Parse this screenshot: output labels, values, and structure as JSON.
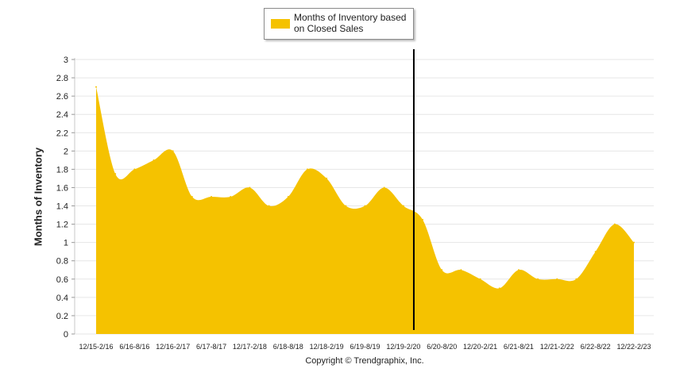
{
  "chart_data": {
    "type": "area",
    "ylabel": "Months of Inventory",
    "ylim": [
      0,
      3
    ],
    "yticks": [
      0,
      0.2,
      0.4,
      0.6,
      0.8,
      1,
      1.2,
      1.4,
      1.6,
      1.8,
      2,
      2.2,
      2.4,
      2.6,
      2.8,
      3
    ],
    "x_tick_labels": [
      "12/15-2/16",
      "6/16-8/16",
      "12/16-2/17",
      "6/17-8/17",
      "12/17-2/18",
      "6/18-8/18",
      "12/18-2/19",
      "6/19-8/19",
      "12/19-2/20",
      "6/20-8/20",
      "12/20-2/21",
      "6/21-8/21",
      "12/21-2/22",
      "6/22-8/22",
      "12/22-2/23"
    ],
    "series": [
      {
        "name": "Months of Inventory based on Closed Sales",
        "color": "#F5C200",
        "x": [
          "12/15-2/16",
          "3/16-5/16",
          "6/16-8/16",
          "9/16-11/16",
          "12/16-2/17",
          "3/17-5/17",
          "6/17-8/17",
          "9/17-11/17",
          "12/17-2/18",
          "3/18-5/18",
          "6/18-8/18",
          "9/18-11/18",
          "12/18-2/19",
          "3/19-5/19",
          "6/19-8/19",
          "9/19-11/19",
          "12/19-2/20",
          "3/20-5/20",
          "6/20-8/20",
          "9/20-11/20",
          "12/20-2/21",
          "3/21-5/21",
          "6/21-8/21",
          "9/21-11/21",
          "12/21-2/22",
          "3/22-5/22",
          "6/22-8/22",
          "9/22-11/22",
          "12/22-2/23"
        ],
        "values": [
          2.7,
          1.75,
          1.8,
          1.9,
          2.0,
          1.5,
          1.5,
          1.5,
          1.6,
          1.4,
          1.5,
          1.8,
          1.7,
          1.4,
          1.4,
          1.6,
          1.4,
          1.25,
          0.7,
          0.7,
          0.6,
          0.5,
          0.7,
          0.6,
          0.6,
          0.6,
          0.9,
          1.2,
          1.0
        ]
      }
    ],
    "marker_line_after": "12/19-2/20",
    "grid": true,
    "legend": "top-center"
  },
  "legend": {
    "label": "Months of Inventory based on Closed Sales",
    "swatch_color": "#F5C200"
  },
  "footer": {
    "copyright": "Copyright © Trendgraphix, Inc."
  }
}
